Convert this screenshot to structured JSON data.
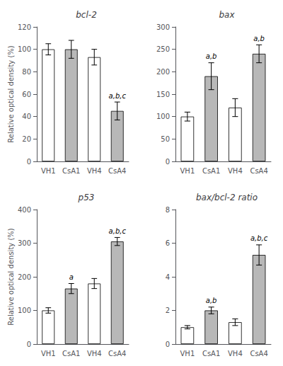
{
  "chart_data": [
    {
      "type": "bar",
      "title": "bcl-2",
      "categories": [
        "VH1",
        "CsA1",
        "VH4",
        "CsA4"
      ],
      "values": [
        100,
        100,
        93,
        45
      ],
      "errors": [
        5,
        8,
        7,
        8
      ],
      "annotations": [
        {
          "category": "CsA4",
          "text": "a,b,c"
        }
      ],
      "colors": [
        "#ffffff",
        "#b8b8b8",
        "#ffffff",
        "#b8b8b8"
      ],
      "ylim": [
        0,
        120
      ],
      "yticks": [
        0,
        20,
        40,
        60,
        80,
        100,
        120
      ],
      "ylabel": "Relative optical density (%)"
    },
    {
      "type": "bar",
      "title": "bax",
      "categories": [
        "VH1",
        "CsA1",
        "VH4",
        "CsA4"
      ],
      "values": [
        100,
        190,
        120,
        240
      ],
      "errors": [
        10,
        30,
        20,
        20
      ],
      "annotations": [
        {
          "category": "CsA1",
          "text": "a,b"
        },
        {
          "category": "CsA4",
          "text": "a,b"
        }
      ],
      "colors": [
        "#ffffff",
        "#b8b8b8",
        "#ffffff",
        "#b8b8b8"
      ],
      "ylim": [
        0,
        300
      ],
      "yticks": [
        0,
        50,
        100,
        150,
        200,
        250,
        300
      ]
    },
    {
      "type": "bar",
      "title": "p53",
      "categories": [
        "VH1",
        "CsA1",
        "VH4",
        "CsA4"
      ],
      "values": [
        100,
        165,
        180,
        305
      ],
      "errors": [
        8,
        15,
        15,
        12
      ],
      "annotations": [
        {
          "category": "CsA1",
          "text": "a"
        },
        {
          "category": "CsA4",
          "text": "a,b,c"
        }
      ],
      "colors": [
        "#ffffff",
        "#b8b8b8",
        "#ffffff",
        "#b8b8b8"
      ],
      "ylim": [
        0,
        400
      ],
      "yticks": [
        0,
        100,
        200,
        300,
        400
      ],
      "ylabel": "Relative optical density (%)"
    },
    {
      "type": "bar",
      "title": "bax/bcl-2 ratio",
      "categories": [
        "VH1",
        "CsA1",
        "VH4",
        "CsA4"
      ],
      "values": [
        1.0,
        2.0,
        1.3,
        5.3
      ],
      "errors": [
        0.1,
        0.2,
        0.2,
        0.6
      ],
      "annotations": [
        {
          "category": "CsA1",
          "text": "a,b"
        },
        {
          "category": "CsA4",
          "text": "a,b,c"
        }
      ],
      "colors": [
        "#ffffff",
        "#b8b8b8",
        "#ffffff",
        "#b8b8b8"
      ],
      "ylim": [
        0,
        8
      ],
      "yticks": [
        0,
        2,
        4,
        6,
        8
      ]
    }
  ]
}
